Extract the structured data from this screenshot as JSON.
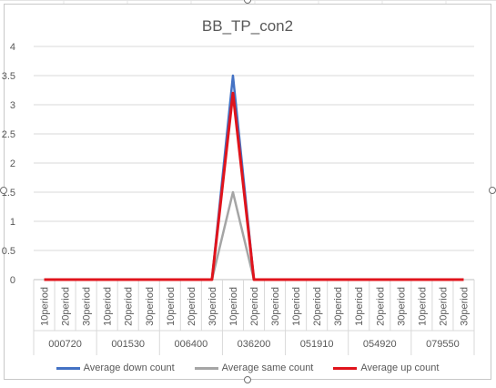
{
  "colors": {
    "down": "#4472c4",
    "same": "#a5a5a5",
    "up": "#e0141c",
    "grid": "#d9d9d9",
    "text": "#595959"
  },
  "chart_data": {
    "type": "line",
    "title": "BB_TP_con2",
    "ylim": [
      0,
      4
    ],
    "yticks": [
      "0",
      "0.5",
      "1",
      "1.5",
      "2",
      "2.5",
      "3",
      "3.5",
      "4"
    ],
    "grid": true,
    "legend_position": "bottom",
    "groups": [
      "000720",
      "001530",
      "006400",
      "036200",
      "051910",
      "054920",
      "079550"
    ],
    "subcategories": [
      "10period",
      "20period",
      "30period"
    ],
    "series": [
      {
        "name": "Average down count",
        "color_key": "down",
        "values": [
          0,
          0,
          0,
          0,
          0,
          0,
          0,
          0,
          0,
          3.5,
          0,
          0,
          0,
          0,
          0,
          0,
          0,
          0,
          0,
          0,
          0
        ]
      },
      {
        "name": "Average same count",
        "color_key": "same",
        "values": [
          0,
          0,
          0,
          0,
          0,
          0,
          0,
          0,
          0,
          1.5,
          0,
          0,
          0,
          0,
          0,
          0,
          0,
          0,
          0,
          0,
          0
        ]
      },
      {
        "name": "Average up count",
        "color_key": "up",
        "values": [
          0,
          0,
          0,
          0,
          0,
          0,
          0,
          0,
          0,
          3.2,
          0,
          0,
          0,
          0,
          0,
          0,
          0,
          0,
          0,
          0,
          0
        ]
      }
    ]
  }
}
